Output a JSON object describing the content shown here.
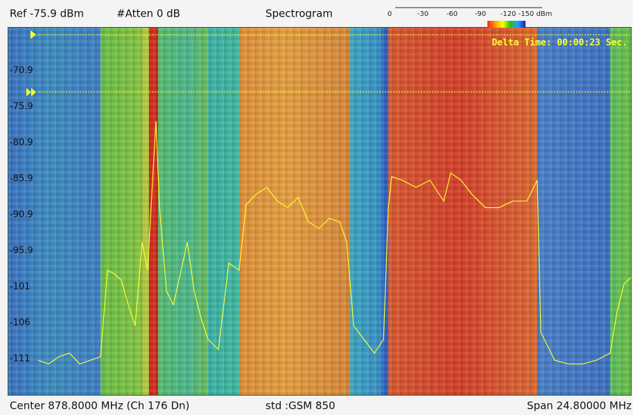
{
  "header": {
    "ref": "Ref -75.9 dBm",
    "atten": "#Atten 0 dB",
    "mode": "Spectrogram"
  },
  "colorbar_labels": [
    "0",
    "-30",
    "-60",
    "-90",
    "-120",
    "-150 dBm"
  ],
  "footer": {
    "center": "Center 878.8000 MHz (Ch 176 Dn)",
    "standard": "std :GSM 850",
    "span": "Span 24.80000 MHz"
  },
  "chart_data": {
    "type": "line",
    "annotation": "Delta Time: 00:00:23 Sec.",
    "xlim": [
      866.4,
      891.2
    ],
    "ylim": [
      -115.9,
      -65.9
    ],
    "yticks": [
      -70.9,
      -75.9,
      -80.9,
      -85.9,
      -90.9,
      -95.9,
      {
        "value": -100.9,
        "label": "-101"
      },
      {
        "value": -105.9,
        "label": "-106"
      },
      {
        "value": -110.9,
        "label": "-111"
      }
    ],
    "color": "#ffff30",
    "x": [
      866.4,
      866.84,
      867.27,
      867.71,
      868.14,
      868.58,
      869.01,
      869.3,
      869.59,
      869.88,
      870.17,
      870.46,
      870.75,
      870.98,
      871.19,
      871.33,
      871.48,
      871.77,
      872.06,
      872.35,
      872.64,
      872.93,
      873.22,
      873.51,
      873.94,
      874.38,
      874.81,
      875.1,
      875.54,
      875.97,
      876.41,
      876.84,
      877.28,
      877.71,
      878.15,
      878.58,
      879.02,
      879.31,
      879.6,
      880.03,
      880.47,
      880.85,
      881.05,
      881.19,
      881.63,
      882.21,
      882.79,
      883.37,
      883.66,
      884.09,
      884.53,
      885.11,
      885.69,
      886.27,
      886.85,
      887.28,
      887.43,
      888.01,
      888.59,
      889.17,
      889.75,
      890.33,
      890.62,
      890.91,
      891.2
    ],
    "values": [
      -111.1,
      -111.6,
      -110.6,
      -110.1,
      -111.6,
      -111.1,
      -110.6,
      -98.6,
      -99.1,
      -100.0,
      -103.4,
      -106.3,
      -94.7,
      -98.6,
      -86.1,
      -77.9,
      -89.9,
      -101.5,
      -103.4,
      -99.1,
      -94.7,
      -101.5,
      -105.3,
      -108.2,
      -109.6,
      -97.6,
      -98.6,
      -89.5,
      -88.0,
      -87.1,
      -89.0,
      -89.9,
      -88.5,
      -91.9,
      -92.8,
      -91.4,
      -91.9,
      -94.7,
      -106.3,
      -108.2,
      -110.1,
      -108.2,
      -89.9,
      -85.6,
      -86.1,
      -87.1,
      -86.1,
      -89.0,
      -85.1,
      -86.1,
      -88.0,
      -89.9,
      -89.9,
      -89.0,
      -89.0,
      -86.1,
      -107.2,
      -111.1,
      -111.6,
      -111.6,
      -111.1,
      -110.1,
      -104.4,
      -100.5,
      -99.6
    ]
  }
}
